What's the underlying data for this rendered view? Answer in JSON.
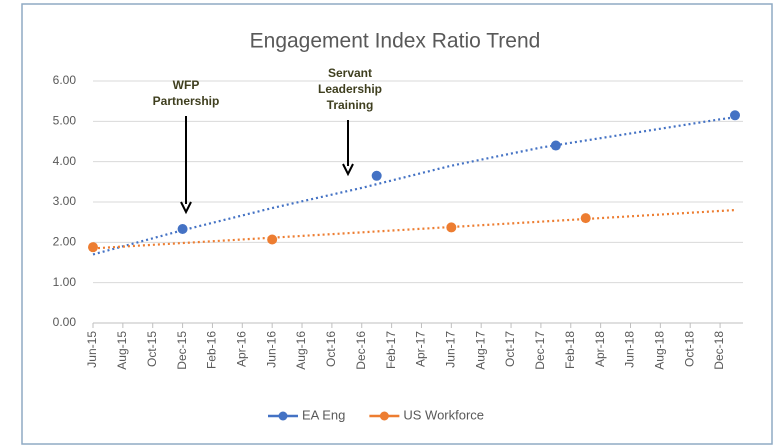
{
  "chart_data": {
    "type": "line",
    "title": "Engagement Index Ratio Trend",
    "series": [
      {
        "name": "EA Eng",
        "color": "#4472c4",
        "x": [
          "2015-12",
          "2017-01",
          "2018-01",
          "2019-01"
        ],
        "values": [
          2.33,
          3.65,
          4.4,
          5.15
        ],
        "trend": {
          "x": [
            "2015-06",
            "2015-12",
            "2016-06",
            "2016-12",
            "2017-06",
            "2017-12",
            "2018-06",
            "2018-12",
            "2019-01"
          ],
          "values": [
            1.7,
            2.3,
            2.85,
            3.35,
            3.9,
            4.35,
            4.7,
            5.05,
            5.1
          ]
        }
      },
      {
        "name": "US Workforce",
        "color": "#ed7d31",
        "x": [
          "2015-06",
          "2016-06",
          "2017-06",
          "2018-03"
        ],
        "values": [
          1.88,
          2.07,
          2.37,
          2.6
        ],
        "trend": {
          "x": [
            "2015-06",
            "2019-01"
          ],
          "values": [
            1.85,
            2.8
          ]
        }
      }
    ],
    "annotations": [
      {
        "lines": [
          "WFP",
          "Partnership"
        ]
      },
      {
        "lines": [
          "Servant",
          "Leadership",
          "Training"
        ]
      }
    ],
    "xlim": [
      "2015-06",
      "2019-01"
    ],
    "xticks": [
      {
        "value": "2015-06",
        "label": "Jun-15"
      },
      {
        "value": "2015-08",
        "label": "Aug-15"
      },
      {
        "value": "2015-10",
        "label": "Oct-15"
      },
      {
        "value": "2015-12",
        "label": "Dec-15"
      },
      {
        "value": "2016-02",
        "label": "Feb-16"
      },
      {
        "value": "2016-04",
        "label": "Apr-16"
      },
      {
        "value": "2016-06",
        "label": "Jun-16"
      },
      {
        "value": "2016-08",
        "label": "Aug-16"
      },
      {
        "value": "2016-10",
        "label": "Oct-16"
      },
      {
        "value": "2016-12",
        "label": "Dec-16"
      },
      {
        "value": "2017-02",
        "label": "Feb-17"
      },
      {
        "value": "2017-04",
        "label": "Apr-17"
      },
      {
        "value": "2017-06",
        "label": "Jun-17"
      },
      {
        "value": "2017-08",
        "label": "Aug-17"
      },
      {
        "value": "2017-10",
        "label": "Oct-17"
      },
      {
        "value": "2017-12",
        "label": "Dec-17"
      },
      {
        "value": "2018-02",
        "label": "Feb-18"
      },
      {
        "value": "2018-04",
        "label": "Apr-18"
      },
      {
        "value": "2018-06",
        "label": "Jun-18"
      },
      {
        "value": "2018-08",
        "label": "Aug-18"
      },
      {
        "value": "2018-10",
        "label": "Oct-18"
      },
      {
        "value": "2018-12",
        "label": "Dec-18"
      }
    ],
    "ylim": [
      0,
      6
    ],
    "yticks": [
      {
        "value": 0,
        "label": "0.00"
      },
      {
        "value": 1,
        "label": "1.00"
      },
      {
        "value": 2,
        "label": "2.00"
      },
      {
        "value": 3,
        "label": "3.00"
      },
      {
        "value": 4,
        "label": "4.00"
      },
      {
        "value": 5,
        "label": "5.00"
      },
      {
        "value": 6,
        "label": "6.00"
      }
    ],
    "grid": true,
    "legend": "bottom"
  }
}
